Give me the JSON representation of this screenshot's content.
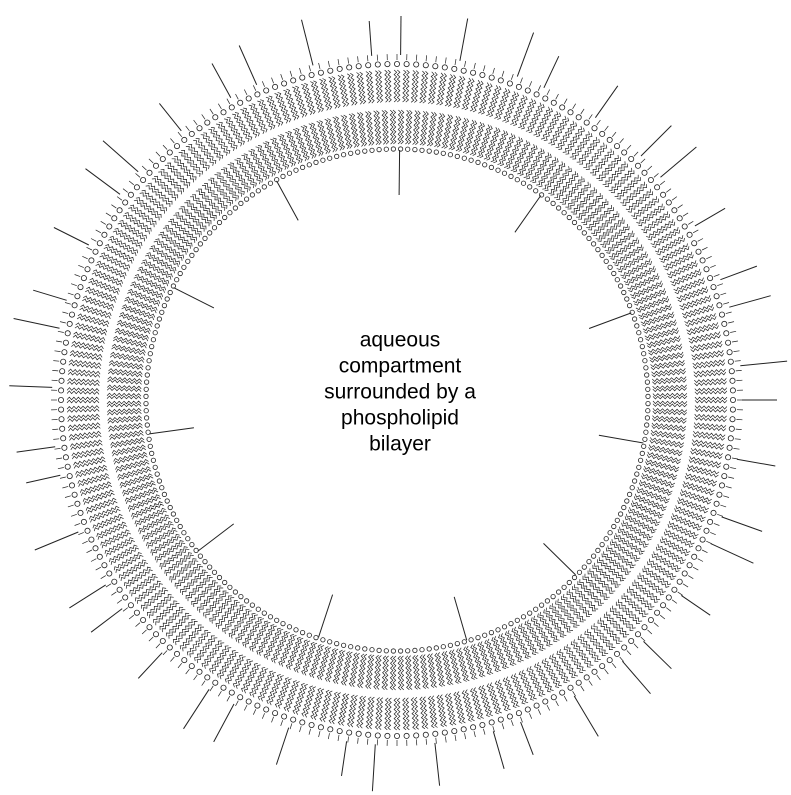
{
  "label": {
    "lines": [
      "aqueous",
      "compartment",
      "surrounded by a",
      "phospholipid",
      "bilayer"
    ]
  }
}
